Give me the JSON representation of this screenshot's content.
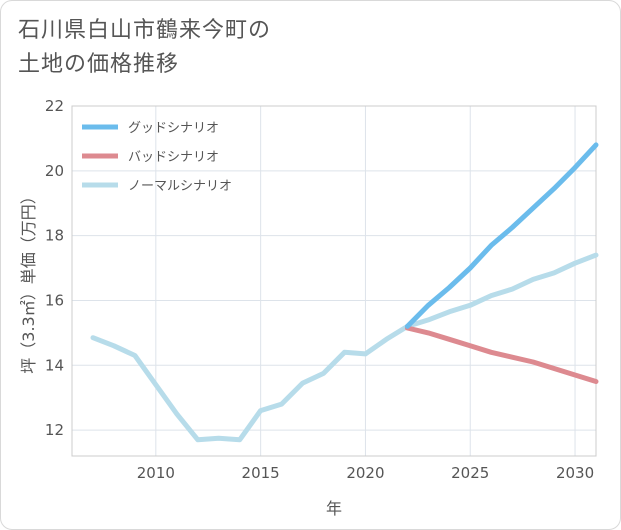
{
  "title_lines": [
    "石川県白山市鶴来今町の",
    "土地の価格推移"
  ],
  "chart_data": {
    "type": "line",
    "title": "石川県白山市鶴来今町の土地の価格推移",
    "xlabel": "年",
    "ylabel": "坪（3.3㎡）単価（万円）",
    "xlim": [
      2006,
      2031
    ],
    "ylim": [
      11.2,
      22
    ],
    "x_ticks": [
      2010,
      2015,
      2020,
      2025,
      2030
    ],
    "y_ticks": [
      12,
      14,
      16,
      18,
      20,
      22
    ],
    "grid": true,
    "legend_position": "top-left",
    "series": [
      {
        "name": "グッドシナリオ",
        "color": "#6bbcec",
        "x": [
          2022,
          2023,
          2024,
          2025,
          2026,
          2027,
          2028,
          2029,
          2030,
          2031
        ],
        "values": [
          15.2,
          15.85,
          16.4,
          17.0,
          17.7,
          18.25,
          18.85,
          19.45,
          20.1,
          20.8
        ]
      },
      {
        "name": "バッドシナリオ",
        "color": "#dd8a90",
        "x": [
          2022,
          2023,
          2024,
          2025,
          2026,
          2027,
          2028,
          2029,
          2030,
          2031
        ],
        "values": [
          15.15,
          15.0,
          14.8,
          14.6,
          14.4,
          14.25,
          14.1,
          13.9,
          13.7,
          13.5
        ]
      },
      {
        "name": "ノーマルシナリオ",
        "color": "#b7dcea",
        "x": [
          2007,
          2008,
          2009,
          2010,
          2011,
          2012,
          2013,
          2014,
          2015,
          2016,
          2017,
          2018,
          2019,
          2020,
          2021,
          2022,
          2023,
          2024,
          2025,
          2026,
          2027,
          2028,
          2029,
          2030,
          2031
        ],
        "values": [
          14.85,
          14.6,
          14.3,
          13.4,
          12.5,
          11.7,
          11.75,
          11.7,
          12.6,
          12.8,
          13.45,
          13.75,
          14.4,
          14.35,
          14.8,
          15.2,
          15.4,
          15.65,
          15.85,
          16.15,
          16.35,
          16.65,
          16.85,
          17.15,
          17.4
        ]
      }
    ]
  }
}
